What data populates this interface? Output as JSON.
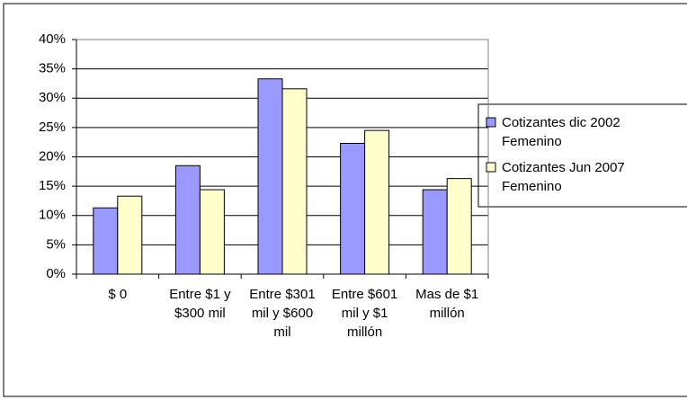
{
  "chart_data": {
    "type": "bar",
    "categories": [
      "$ 0",
      "Entre $1 y $300 mil",
      "Entre $301 mil y $600 mil",
      "Entre $601 mil y $1 millón",
      "Mas de $1 millón"
    ],
    "series": [
      {
        "name": "Cotizantes dic 2002 Femenino",
        "color": "#9999ff",
        "values": [
          11.3,
          18.5,
          33.3,
          22.3,
          14.4
        ]
      },
      {
        "name": "Cotizantes Jun 2007 Femenino",
        "color": "#ffffcc",
        "values": [
          13.3,
          14.4,
          31.6,
          24.5,
          16.3
        ]
      }
    ],
    "ylim": [
      0,
      40
    ],
    "yticks": [
      {
        "value": 0,
        "label": "0%"
      },
      {
        "value": 5,
        "label": "5%"
      },
      {
        "value": 10,
        "label": "10%"
      },
      {
        "value": 15,
        "label": "15%"
      },
      {
        "value": 20,
        "label": "20%"
      },
      {
        "value": 25,
        "label": "25%"
      },
      {
        "value": 30,
        "label": "30%"
      },
      {
        "value": 35,
        "label": "35%"
      },
      {
        "value": 40,
        "label": "40%"
      }
    ],
    "grid": true,
    "legend": "right"
  }
}
